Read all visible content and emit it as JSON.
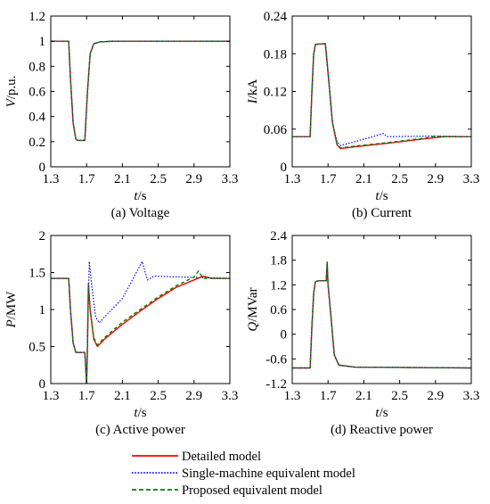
{
  "colors": {
    "detailed": "#ff0000",
    "single": "#0000ff",
    "proposed": "#008000"
  },
  "legend": [
    {
      "label": "Detailed model",
      "style": "solid",
      "color": "#ff0000"
    },
    {
      "label": "Single-machine equivalent model",
      "style": "dotted",
      "color": "#0000ff"
    },
    {
      "label": "Proposed equivalent model",
      "style": "dashed",
      "color": "#008000"
    }
  ],
  "chart_data": [
    {
      "type": "line",
      "caption": "(a) Voltage",
      "xlabel_var": "t",
      "xlabel_unit": "/s",
      "ylabel_var": "V",
      "ylabel_unit": "/p.u.",
      "xlim": [
        1.3,
        3.3
      ],
      "ylim": [
        0,
        1.2
      ],
      "xticks": [
        "1.3",
        "1.7",
        "2.1",
        "2.5",
        "2.9",
        "3.3"
      ],
      "yticks": [
        "0",
        "0.2",
        "0.4",
        "0.6",
        "0.8",
        "1",
        "1.2"
      ],
      "series": [
        {
          "name": "Detailed model",
          "points": [
            [
              1.3,
              1
            ],
            [
              1.5,
              1
            ],
            [
              1.52,
              0.7
            ],
            [
              1.55,
              0.35
            ],
            [
              1.58,
              0.22
            ],
            [
              1.6,
              0.21
            ],
            [
              1.68,
              0.21
            ],
            [
              1.71,
              0.6
            ],
            [
              1.74,
              0.9
            ],
            [
              1.78,
              0.98
            ],
            [
              1.85,
              0.995
            ],
            [
              2.0,
              1
            ],
            [
              3.3,
              1
            ]
          ]
        },
        {
          "name": "Single-machine equivalent model",
          "points": [
            [
              1.3,
              1
            ],
            [
              1.5,
              1
            ],
            [
              1.52,
              0.7
            ],
            [
              1.55,
              0.35
            ],
            [
              1.58,
              0.22
            ],
            [
              1.6,
              0.21
            ],
            [
              1.68,
              0.21
            ],
            [
              1.71,
              0.6
            ],
            [
              1.74,
              0.9
            ],
            [
              1.78,
              0.98
            ],
            [
              1.85,
              0.995
            ],
            [
              2.0,
              1
            ],
            [
              3.3,
              1
            ]
          ]
        },
        {
          "name": "Proposed equivalent model",
          "points": [
            [
              1.3,
              1
            ],
            [
              1.5,
              1
            ],
            [
              1.52,
              0.7
            ],
            [
              1.55,
              0.35
            ],
            [
              1.58,
              0.22
            ],
            [
              1.6,
              0.21
            ],
            [
              1.68,
              0.21
            ],
            [
              1.71,
              0.6
            ],
            [
              1.74,
              0.9
            ],
            [
              1.78,
              0.98
            ],
            [
              1.85,
              0.995
            ],
            [
              2.0,
              1
            ],
            [
              3.3,
              1
            ]
          ]
        }
      ]
    },
    {
      "type": "line",
      "caption": "(b) Current",
      "xlabel_var": "t",
      "xlabel_unit": "/s",
      "ylabel_var": "I",
      "ylabel_unit": "/kA",
      "xlim": [
        1.3,
        3.3
      ],
      "ylim": [
        0,
        0.24
      ],
      "xticks": [
        "1.3",
        "1.7",
        "2.1",
        "2.5",
        "2.9",
        "3.3"
      ],
      "yticks": [
        "0",
        "0.06",
        "0.12",
        "0.18",
        "0.24"
      ],
      "series": [
        {
          "name": "Detailed model",
          "points": [
            [
              1.3,
              0.048
            ],
            [
              1.5,
              0.048
            ],
            [
              1.52,
              0.12
            ],
            [
              1.54,
              0.18
            ],
            [
              1.56,
              0.195
            ],
            [
              1.67,
              0.196
            ],
            [
              1.7,
              0.15
            ],
            [
              1.75,
              0.07
            ],
            [
              1.8,
              0.035
            ],
            [
              1.84,
              0.029
            ],
            [
              2.0,
              0.032
            ],
            [
              2.4,
              0.038
            ],
            [
              2.8,
              0.045
            ],
            [
              3.0,
              0.048
            ],
            [
              3.3,
              0.048
            ]
          ]
        },
        {
          "name": "Single-machine equivalent model",
          "points": [
            [
              1.3,
              0.048
            ],
            [
              1.5,
              0.048
            ],
            [
              1.52,
              0.12
            ],
            [
              1.54,
              0.18
            ],
            [
              1.56,
              0.195
            ],
            [
              1.67,
              0.196
            ],
            [
              1.7,
              0.15
            ],
            [
              1.75,
              0.07
            ],
            [
              1.8,
              0.04
            ],
            [
              1.84,
              0.034
            ],
            [
              2.0,
              0.04
            ],
            [
              2.2,
              0.048
            ],
            [
              2.32,
              0.053
            ],
            [
              2.36,
              0.048
            ],
            [
              2.9,
              0.049
            ],
            [
              3.3,
              0.048
            ]
          ]
        },
        {
          "name": "Proposed equivalent model",
          "points": [
            [
              1.3,
              0.048
            ],
            [
              1.5,
              0.048
            ],
            [
              1.52,
              0.12
            ],
            [
              1.54,
              0.18
            ],
            [
              1.56,
              0.195
            ],
            [
              1.67,
              0.196
            ],
            [
              1.7,
              0.15
            ],
            [
              1.75,
              0.07
            ],
            [
              1.8,
              0.036
            ],
            [
              1.84,
              0.03
            ],
            [
              2.0,
              0.033
            ],
            [
              2.4,
              0.039
            ],
            [
              2.8,
              0.046
            ],
            [
              2.9,
              0.049
            ],
            [
              3.0,
              0.048
            ],
            [
              3.3,
              0.048
            ]
          ]
        }
      ]
    },
    {
      "type": "line",
      "caption": "(c) Active power",
      "xlabel_var": "t",
      "xlabel_unit": "/s",
      "ylabel_var": "P",
      "ylabel_unit": "/MW",
      "xlim": [
        1.3,
        3.3
      ],
      "ylim": [
        0,
        2
      ],
      "xticks": [
        "1.3",
        "1.7",
        "2.1",
        "2.5",
        "2.9",
        "3.3"
      ],
      "yticks": [
        "0",
        "0.5",
        "1",
        "1.5",
        "2"
      ],
      "series": [
        {
          "name": "Detailed model",
          "points": [
            [
              1.3,
              1.42
            ],
            [
              1.5,
              1.42
            ],
            [
              1.52,
              1.0
            ],
            [
              1.55,
              0.55
            ],
            [
              1.58,
              0.42
            ],
            [
              1.68,
              0.42
            ],
            [
              1.7,
              0.0
            ],
            [
              1.71,
              0.5
            ],
            [
              1.72,
              1.35
            ],
            [
              1.74,
              1.0
            ],
            [
              1.78,
              0.6
            ],
            [
              1.82,
              0.5
            ],
            [
              1.9,
              0.6
            ],
            [
              2.1,
              0.8
            ],
            [
              2.3,
              0.98
            ],
            [
              2.5,
              1.15
            ],
            [
              2.7,
              1.3
            ],
            [
              2.9,
              1.4
            ],
            [
              3.0,
              1.45
            ],
            [
              3.1,
              1.42
            ],
            [
              3.3,
              1.42
            ]
          ]
        },
        {
          "name": "Single-machine equivalent model",
          "points": [
            [
              1.3,
              1.42
            ],
            [
              1.5,
              1.42
            ],
            [
              1.52,
              1.0
            ],
            [
              1.55,
              0.55
            ],
            [
              1.58,
              0.42
            ],
            [
              1.68,
              0.42
            ],
            [
              1.7,
              0.0
            ],
            [
              1.71,
              0.6
            ],
            [
              1.73,
              1.65
            ],
            [
              1.76,
              1.3
            ],
            [
              1.8,
              0.9
            ],
            [
              1.84,
              0.82
            ],
            [
              1.9,
              0.9
            ],
            [
              2.1,
              1.15
            ],
            [
              2.3,
              1.6
            ],
            [
              2.32,
              1.65
            ],
            [
              2.38,
              1.4
            ],
            [
              2.45,
              1.45
            ],
            [
              3.3,
              1.42
            ]
          ]
        },
        {
          "name": "Proposed equivalent model",
          "points": [
            [
              1.3,
              1.42
            ],
            [
              1.5,
              1.42
            ],
            [
              1.52,
              1.0
            ],
            [
              1.55,
              0.55
            ],
            [
              1.58,
              0.42
            ],
            [
              1.68,
              0.42
            ],
            [
              1.7,
              0.0
            ],
            [
              1.71,
              0.5
            ],
            [
              1.72,
              1.35
            ],
            [
              1.74,
              1.0
            ],
            [
              1.78,
              0.62
            ],
            [
              1.82,
              0.52
            ],
            [
              1.9,
              0.62
            ],
            [
              2.1,
              0.83
            ],
            [
              2.3,
              1.0
            ],
            [
              2.5,
              1.17
            ],
            [
              2.7,
              1.32
            ],
            [
              2.9,
              1.44
            ],
            [
              2.95,
              1.52
            ],
            [
              3.0,
              1.42
            ],
            [
              3.3,
              1.42
            ]
          ]
        }
      ]
    },
    {
      "type": "line",
      "caption": "(d) Reactive power",
      "xlabel_var": "t",
      "xlabel_unit": "/s",
      "ylabel_var": "Q",
      "ylabel_unit": "/MVar",
      "xlim": [
        1.3,
        3.3
      ],
      "ylim": [
        -1.2,
        2.4
      ],
      "xticks": [
        "1.3",
        "1.7",
        "2.1",
        "2.5",
        "2.9",
        "3.3"
      ],
      "yticks": [
        "-1.2",
        "-0.6",
        "0",
        "0.6",
        "1.2",
        "1.8",
        "2.4"
      ],
      "series": [
        {
          "name": "Detailed model",
          "points": [
            [
              1.3,
              -0.82
            ],
            [
              1.5,
              -0.82
            ],
            [
              1.52,
              0.2
            ],
            [
              1.54,
              1.0
            ],
            [
              1.56,
              1.28
            ],
            [
              1.6,
              1.3
            ],
            [
              1.68,
              1.3
            ],
            [
              1.69,
              1.75
            ],
            [
              1.7,
              1.2
            ],
            [
              1.73,
              0.5
            ],
            [
              1.77,
              -0.5
            ],
            [
              1.82,
              -0.75
            ],
            [
              2.0,
              -0.8
            ],
            [
              3.3,
              -0.82
            ]
          ]
        },
        {
          "name": "Single-machine equivalent model",
          "points": [
            [
              1.3,
              -0.82
            ],
            [
              1.5,
              -0.82
            ],
            [
              1.52,
              0.2
            ],
            [
              1.54,
              1.0
            ],
            [
              1.56,
              1.28
            ],
            [
              1.6,
              1.3
            ],
            [
              1.68,
              1.3
            ],
            [
              1.69,
              1.75
            ],
            [
              1.7,
              1.2
            ],
            [
              1.73,
              0.5
            ],
            [
              1.77,
              -0.5
            ],
            [
              1.82,
              -0.75
            ],
            [
              2.0,
              -0.8
            ],
            [
              3.3,
              -0.82
            ]
          ]
        },
        {
          "name": "Proposed equivalent model",
          "points": [
            [
              1.3,
              -0.82
            ],
            [
              1.5,
              -0.82
            ],
            [
              1.52,
              0.2
            ],
            [
              1.54,
              1.0
            ],
            [
              1.56,
              1.28
            ],
            [
              1.6,
              1.3
            ],
            [
              1.68,
              1.3
            ],
            [
              1.69,
              1.75
            ],
            [
              1.7,
              1.2
            ],
            [
              1.73,
              0.5
            ],
            [
              1.77,
              -0.5
            ],
            [
              1.82,
              -0.75
            ],
            [
              2.0,
              -0.8
            ],
            [
              3.3,
              -0.82
            ]
          ]
        }
      ]
    }
  ]
}
